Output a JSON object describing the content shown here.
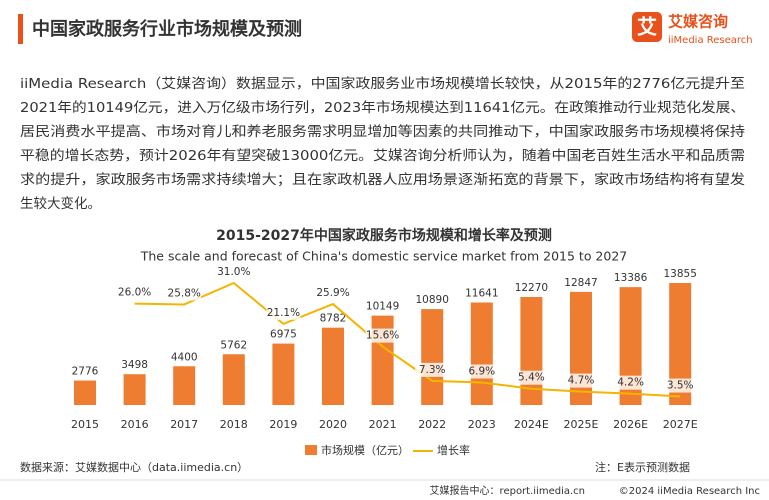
{
  "header": {
    "title": "中国家政服务行业市场规模及预测"
  },
  "logo": {
    "mark": "艾",
    "name": "艾媒咨询",
    "en": "iiMedia Research"
  },
  "paragraph": {
    "lines": [
      "iiMedia Research（艾媒咨询）数据显示，中国家政服务业市场规模增长较快，从2015年的2776亿元提升至",
      "2021年的10149亿元，进入万亿级市场行列，2023年市场规模达到11641亿元。在政策推动行业规范化发展、",
      "居民消费水平提高、市场对育儿和养老服务需求明显增加等因素的共同推动下，中国家政服务市场规模将保持",
      "平稳的增长态势，预计2026年有望突破13000亿元。艾媒咨询分析师认为，随着中国老百姓生活水平和品质需",
      "求的提升，家政服务市场需求持续增大；且在家政机器人应用场景逐渐拓宽的背景下，家政市场结构将有望发",
      "生较大变化。"
    ]
  },
  "chart_data": {
    "type": "bar",
    "title": "2015-2027年中国家政服务市场规模和增长率及预测",
    "subtitle": "The scale and forecast of China's domestic service market from 2015 to 2027",
    "categories": [
      "2015",
      "2016",
      "2017",
      "2018",
      "2019",
      "2020",
      "2021",
      "2022",
      "2023",
      "2024E",
      "2025E",
      "2026E",
      "2027E"
    ],
    "series": [
      {
        "name": "市场规模（亿元）",
        "type": "bar",
        "color": "#ee7d31",
        "values": [
          2776,
          3498,
          4400,
          5762,
          6975,
          8782,
          10149,
          10890,
          11641,
          12270,
          12847,
          13386,
          13855
        ]
      },
      {
        "name": "增长率",
        "type": "line",
        "axis": "y2",
        "color": "#f5b400",
        "values": [
          null,
          26.0,
          25.8,
          31.0,
          21.1,
          25.9,
          15.6,
          7.3,
          6.9,
          5.4,
          4.7,
          4.2,
          3.5
        ],
        "value_labels": [
          null,
          "26.0%",
          "25.8%",
          "31.0%",
          "21.1%",
          "25.9%",
          "15.6%",
          "7.3%",
          "6.9%",
          "5.4%",
          "4.7%",
          "4.2%",
          "3.5%"
        ]
      }
    ],
    "legend": "bottom"
  },
  "footer": {
    "source": "数据来源：艾媒数据中心（data.iimedia.cn）",
    "note": "注：E表示预测数据",
    "site": "艾媒报告中心：report.iimedia.cn",
    "copyright": "©2024  iiMedia Research  Inc"
  }
}
